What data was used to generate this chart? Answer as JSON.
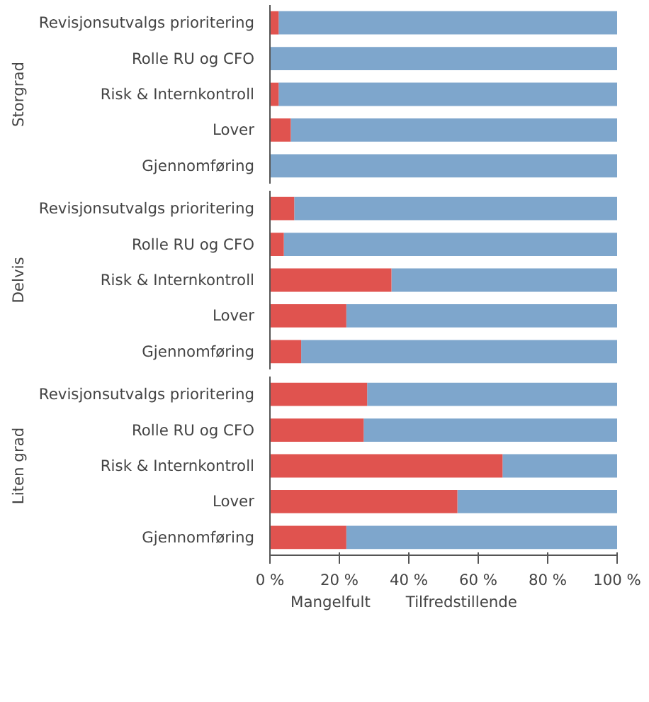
{
  "chart_data": [
    {
      "type": "bar",
      "orientation": "horizontal",
      "stacked": true,
      "ylabel": "Storgrad",
      "categories": [
        "Revisjonsutvalgs prioritering",
        "Rolle RU og CFO",
        "Risk & Internkontroll",
        "Lover",
        "Gjennomføring"
      ],
      "xlim": [
        0,
        100
      ],
      "tick_labels": "y",
      "grid": false,
      "series": [
        {
          "color": "#e0534f",
          "values": [
            2.5,
            0,
            2.5,
            6,
            0
          ]
        },
        {
          "color": "#7ea6cc",
          "values": [
            97.5,
            100,
            97.5,
            94,
            100
          ]
        }
      ]
    },
    {
      "type": "bar",
      "orientation": "horizontal",
      "stacked": true,
      "ylabel": "Delvis",
      "categories": [
        "Revisjonsutvalgs prioritering",
        "Rolle RU og CFO",
        "Risk & Internkontroll",
        "Lover",
        "Gjennomføring"
      ],
      "xlim": [
        0,
        100
      ],
      "tick_labels": "y",
      "grid": false,
      "series": [
        {
          "color": "#e0534f",
          "values": [
            7,
            4,
            35,
            22,
            9
          ]
        },
        {
          "color": "#7ea6cc",
          "values": [
            93,
            96,
            65,
            78,
            91
          ]
        }
      ]
    },
    {
      "type": "bar",
      "orientation": "horizontal",
      "stacked": true,
      "ylabel": "Liten grad",
      "categories": [
        "Revisjonsutvalgs prioritering",
        "Rolle RU og CFO",
        "Risk & Internkontroll",
        "Lover",
        "Gjennomføring"
      ],
      "xlim": [
        0,
        100
      ],
      "xticks": [
        {
          "value": 0,
          "label": "0 %"
        },
        {
          "value": 20,
          "label": "20 %"
        },
        {
          "value": 40,
          "label": "40 %"
        },
        {
          "value": 60,
          "label": "60 %"
        },
        {
          "value": 80,
          "label": "80 %"
        },
        {
          "value": 100,
          "label": "100 %"
        }
      ],
      "grid": false,
      "legend": "bottom",
      "series": [
        {
          "name": "Mangelfult",
          "color": "#e0534f",
          "values": [
            28,
            27,
            67,
            54,
            22
          ]
        },
        {
          "name": "Tilfredstillende",
          "color": "#7ea6cc",
          "values": [
            72,
            73,
            33,
            46,
            78
          ]
        }
      ]
    }
  ]
}
